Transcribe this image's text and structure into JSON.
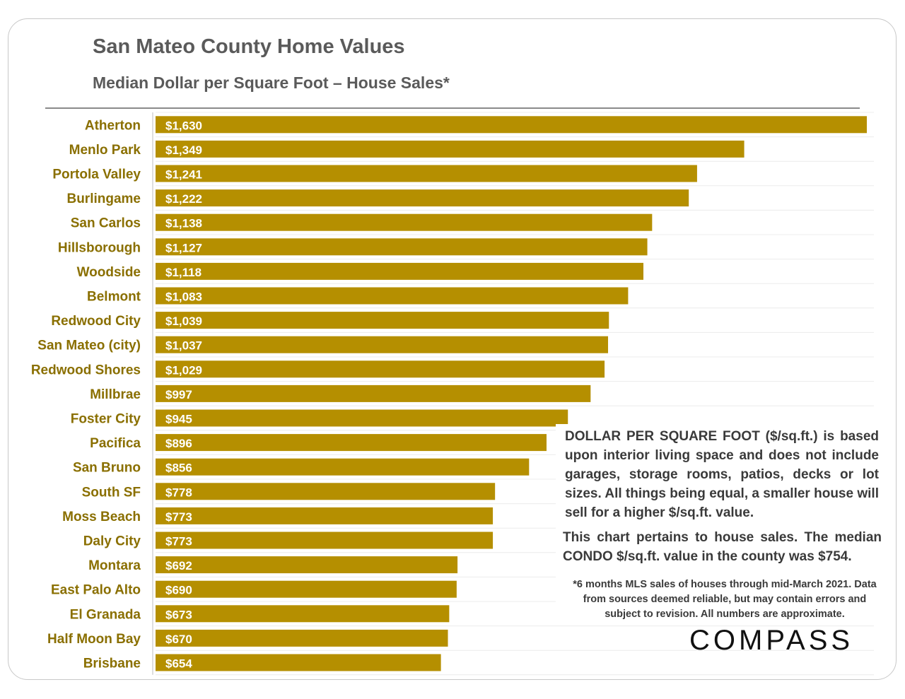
{
  "page": {
    "title": "San Mateo County Home Values",
    "subtitle": "Median Dollar per Square Foot – House Sales*",
    "note_definition": "DOLLAR PER SQUARE FOOT ($/sq.ft.) is based upon interior living space and does not include garages, storage rooms, patios, decks or lot sizes. All things being equal, a smaller house will sell for a higher $/sq.ft. value.",
    "note_condo": "This chart pertains to house sales. The median CONDO $/sq.ft. value in the county was $754.",
    "footnote": "*6 months MLS sales of houses through mid-March 2021. Data from sources deemed reliable, but may contain errors and subject to revision. All numbers are approximate.",
    "logo": "COMPASS"
  },
  "chart_data": {
    "type": "bar",
    "orientation": "horizontal",
    "title": "San Mateo County Home Values",
    "subtitle": "Median Dollar per Square Foot – House Sales*",
    "categories": [
      "Atherton",
      "Menlo Park",
      "Portola Valley",
      "Burlingame",
      "San Carlos",
      "Hillsborough",
      "Woodside",
      "Belmont",
      "Redwood City",
      "San Mateo (city)",
      "Redwood Shores",
      "Millbrae",
      "Foster City",
      "Pacifica",
      "San Bruno",
      "South SF",
      "Moss Beach",
      "Daly City",
      "Montara",
      "East Palo Alto",
      "El Granada",
      "Half Moon Bay",
      "Brisbane"
    ],
    "values": [
      1630,
      1349,
      1241,
      1222,
      1138,
      1127,
      1118,
      1083,
      1039,
      1037,
      1029,
      997,
      945,
      896,
      856,
      778,
      773,
      773,
      692,
      690,
      673,
      670,
      654
    ],
    "data_labels": [
      "$1,630",
      "$1,349",
      "$1,241",
      "$1,222",
      "$1,138",
      "$1,127",
      "$1,118",
      "$1,083",
      "$1,039",
      "$1,037",
      "$1,029",
      "$997",
      "$945",
      "$896",
      "$856",
      "$778",
      "$773",
      "$773",
      "$692",
      "$690",
      "$673",
      "$670",
      "$654"
    ],
    "xlim": [
      0,
      1630
    ],
    "bar_color": "#b58f00",
    "label_color": "#8a6f00",
    "grid": true,
    "legend": "none"
  }
}
